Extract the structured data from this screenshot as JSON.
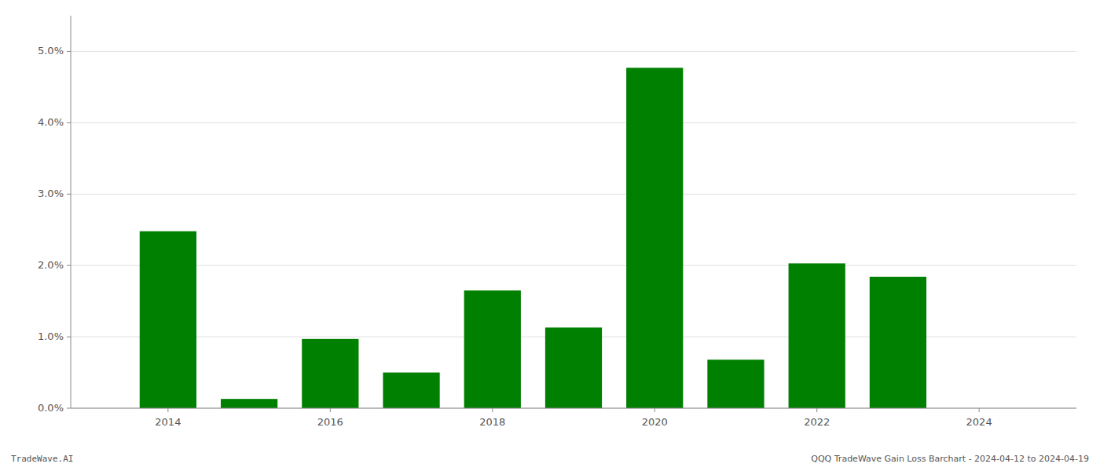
{
  "chart_data": {
    "type": "bar",
    "x": [
      2014,
      2015,
      2016,
      2017,
      2018,
      2019,
      2020,
      2021,
      2022,
      2023,
      2024
    ],
    "values": [
      0.0248,
      0.0013,
      0.0097,
      0.005,
      0.0165,
      0.0113,
      0.0477,
      0.0068,
      0.0203,
      0.0184,
      0.0
    ],
    "color": "#008000",
    "xlim": [
      2012.8,
      2025.2
    ],
    "xticks": [
      2014,
      2016,
      2018,
      2020,
      2022,
      2024
    ],
    "ylim": [
      0,
      0.055
    ],
    "yticks": [
      {
        "value": 0.0,
        "label": "0.0%"
      },
      {
        "value": 0.01,
        "label": "1.0%"
      },
      {
        "value": 0.02,
        "label": "2.0%"
      },
      {
        "value": 0.03,
        "label": "3.0%"
      },
      {
        "value": 0.04,
        "label": "4.0%"
      },
      {
        "value": 0.05,
        "label": "5.0%"
      }
    ],
    "grid": true,
    "annotations": [
      "TradeWave.AI",
      "QQQ TradeWave Gain Loss Barchart - 2024-04-12 to 2024-04-19"
    ]
  }
}
